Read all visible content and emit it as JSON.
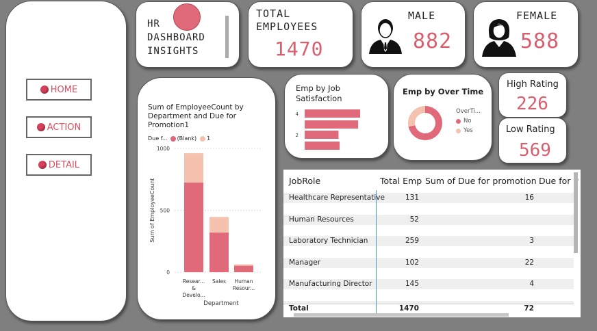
{
  "nav": {
    "items": [
      {
        "label": "HOME"
      },
      {
        "label": "ACTION"
      },
      {
        "label": "DETAIL"
      }
    ]
  },
  "title_card": {
    "lines": [
      "HR",
      "DASHBOARD",
      "INSIGHTS"
    ]
  },
  "kpis": {
    "total": {
      "title_line1": "TOTAL",
      "title_line2": "EMPLOYEES",
      "value": "1470"
    },
    "male": {
      "title": "MALE",
      "value": "882"
    },
    "female": {
      "title": "FEMALE",
      "value": "588"
    },
    "high_rating": {
      "title": "High Rating",
      "value": "226"
    },
    "low_rating": {
      "title": "Low Rating",
      "value": "569"
    }
  },
  "colors": {
    "accent": "#d95f6e",
    "bar_primary": "#e0697a",
    "bar_secondary": "#f5c2b0"
  },
  "dept_chart": {
    "title_lines": [
      "Sum of EmployeeCount by",
      "Department and Due for",
      "Promotion1"
    ],
    "legend_title": "Due f...",
    "legend_items": [
      "(Blank)",
      "1"
    ],
    "ylabel": "Sum of EmployeeCount",
    "xlabel": "Department",
    "yticks": [
      "1000",
      "500",
      "0"
    ],
    "category_labels": [
      [
        "Resear...",
        "&",
        "Develo..."
      ],
      [
        "Sales"
      ],
      [
        "Human",
        "Resour..."
      ]
    ]
  },
  "sat_chart": {
    "title_lines": [
      "Emp by Job",
      "Satisfaction"
    ],
    "yticks": [
      "4",
      "2"
    ]
  },
  "ot_chart": {
    "title": "Emp by Over Time",
    "legend_title": "OverTi...",
    "legend_items": [
      "No",
      "Yes"
    ]
  },
  "chart_data": [
    {
      "type": "bar",
      "title": "Sum of EmployeeCount by Department and Due for Promotion1",
      "xlabel": "Department",
      "ylabel": "Sum of EmployeeCount",
      "categories": [
        "Research & Development",
        "Sales",
        "Human Resources"
      ],
      "series": [
        {
          "name": "(Blank)",
          "values": [
            725,
            320,
            52
          ]
        },
        {
          "name": "1",
          "values": [
            236,
            126,
            11
          ]
        }
      ],
      "stacked": true,
      "ylim": [
        0,
        1000
      ],
      "legend": "top"
    },
    {
      "type": "bar",
      "orientation": "horizontal",
      "title": "Emp by Job Satisfaction",
      "categories": [
        "4",
        "3",
        "2",
        "1"
      ],
      "values": [
        459,
        442,
        280,
        289
      ]
    },
    {
      "type": "pie",
      "donut": true,
      "title": "Emp by Over Time",
      "categories": [
        "No",
        "Yes"
      ],
      "values": [
        1054,
        416
      ],
      "legend": "right"
    }
  ],
  "table": {
    "headers": [
      "JobRole",
      "Total Emp",
      "Sum of Due for promotion",
      "Due for P"
    ],
    "rows": [
      {
        "role": "Healthcare Representative",
        "total": "131",
        "due": "16"
      },
      {
        "role": "Human Resources",
        "total": "52",
        "due": ""
      },
      {
        "role": "Laboratory Technician",
        "total": "259",
        "due": "3"
      },
      {
        "role": "Manager",
        "total": "102",
        "due": "22"
      },
      {
        "role": "Manufacturing Director",
        "total": "145",
        "due": "4"
      }
    ],
    "total_row": {
      "label": "Total",
      "total": "1470",
      "due": "72"
    }
  }
}
